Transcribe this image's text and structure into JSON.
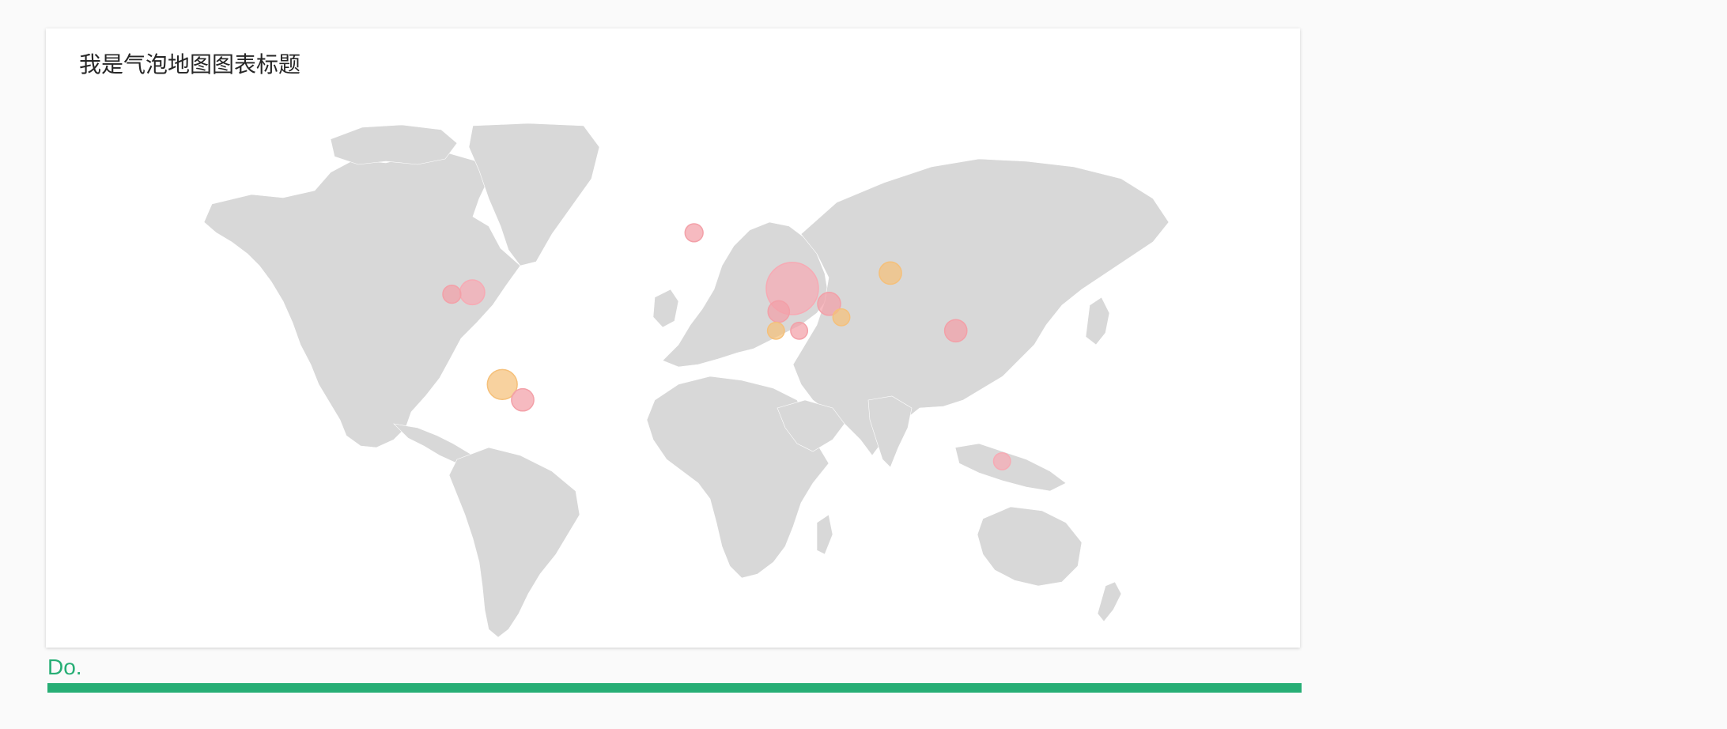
{
  "chart": {
    "title": "我是气泡地图图表标题"
  },
  "chart_data": {
    "type": "bubble-map",
    "projection": "equirectangular",
    "series": [
      {
        "lon": -0.1,
        "lat": 51.5,
        "value": 4,
        "color": "#f3a0a8"
      },
      {
        "lon": 36.0,
        "lat": 37.0,
        "value": 100,
        "color": "#f7aab4"
      },
      {
        "lon": 49.5,
        "lat": 33.0,
        "value": 10,
        "color": "#f3a0a8"
      },
      {
        "lon": 31.0,
        "lat": 31.0,
        "value": 8,
        "color": "#f3a0a8"
      },
      {
        "lon": 54.0,
        "lat": 29.5,
        "value": 3,
        "color": "#f5c07a"
      },
      {
        "lon": 30.0,
        "lat": 26.0,
        "value": 3,
        "color": "#f5c07a"
      },
      {
        "lon": 38.5,
        "lat": 26.0,
        "value": 3,
        "color": "#f3a0a8"
      },
      {
        "lon": 72.0,
        "lat": 41.0,
        "value": 9,
        "color": "#f5c07a"
      },
      {
        "lon": 96.0,
        "lat": 26.0,
        "value": 9,
        "color": "#f3a0a8"
      },
      {
        "lon": 113.0,
        "lat": -8.0,
        "value": 3,
        "color": "#f7aab4"
      },
      {
        "lon": -81.5,
        "lat": 36.0,
        "value": 13,
        "color": "#f7aab4"
      },
      {
        "lon": -89.0,
        "lat": 35.5,
        "value": 4,
        "color": "#f3a0a8"
      },
      {
        "lon": -70.5,
        "lat": 12.0,
        "value": 23,
        "color": "#f5c07a"
      },
      {
        "lon": -63.0,
        "lat": 8.0,
        "value": 9,
        "color": "#f3a0a8"
      }
    ]
  },
  "status": {
    "label": "Do."
  }
}
